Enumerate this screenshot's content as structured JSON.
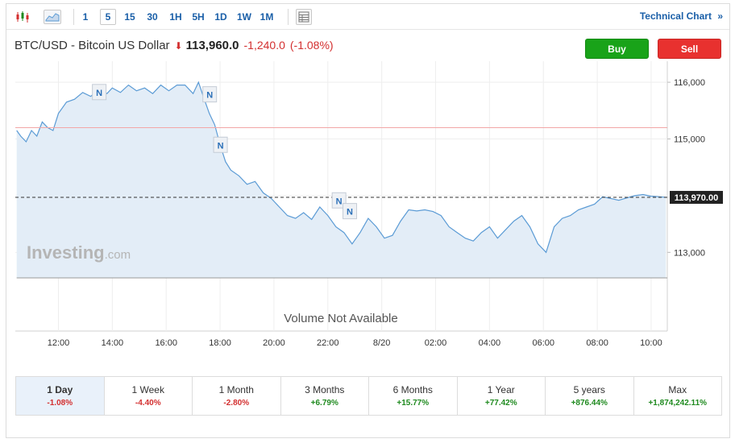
{
  "toolbar": {
    "chart_type_icons": [
      "candlestick-icon",
      "area-chart-icon"
    ],
    "timeframes": [
      "1",
      "5",
      "15",
      "30",
      "1H",
      "5H",
      "1D",
      "1W",
      "1M"
    ],
    "active_timeframe": "5",
    "table_icon": "table-icon",
    "technical_chart_label": "Technical Chart",
    "technical_chart_arrow": "»"
  },
  "instrument": {
    "name": "BTC/USD - Bitcoin US Dollar",
    "direction_icon": "down-arrow-icon",
    "price": "113,960.0",
    "change": "-1,240.0",
    "change_pct": "(-1.08%)"
  },
  "actions": {
    "buy_label": "Buy",
    "sell_label": "Sell"
  },
  "colors": {
    "buy": "#19a319",
    "sell": "#e8312f",
    "line": "#5b9bd5",
    "fill": "#e3edf7",
    "negative": "#d32f2f",
    "positive": "#1f8a1f"
  },
  "chart": {
    "watermark": "Investing",
    "watermark_suffix": ".com",
    "volume_text": "Volume Not Available",
    "news_marker_label": "N",
    "current_price_label": "113,970.00",
    "y_tick_labels": [
      "116,000",
      "115,000",
      "113,000"
    ],
    "x_tick_labels": [
      "12:00",
      "14:00",
      "16:00",
      "18:00",
      "20:00",
      "22:00",
      "8/20",
      "02:00",
      "04:00",
      "06:00",
      "08:00",
      "10:00"
    ]
  },
  "chart_data": {
    "type": "area",
    "ylim": [
      112550,
      116300
    ],
    "y_ticks": [
      116000,
      115000,
      114000,
      113000
    ],
    "x_range": [
      10.4,
      34.6
    ],
    "x_ticks": [
      12,
      14,
      16,
      18,
      20,
      22,
      24,
      26,
      28,
      30,
      32,
      34
    ],
    "previous_close": 115200,
    "current_price": 113970,
    "news_markers": [
      [
        13.5,
        115820
      ],
      [
        17.6,
        115780
      ],
      [
        18.0,
        114890
      ],
      [
        22.4,
        113910
      ],
      [
        22.8,
        113720
      ]
    ],
    "series": [
      {
        "x": [
          10.45,
          10.6,
          10.8,
          11.0,
          11.2,
          11.4,
          11.6,
          11.8,
          12.0,
          12.3,
          12.6,
          12.9,
          13.2,
          13.5,
          13.8,
          14.0,
          14.3,
          14.6,
          14.9,
          15.2,
          15.5,
          15.8,
          16.1,
          16.4,
          16.7,
          17.0,
          17.2,
          17.4,
          17.6,
          17.8,
          18.0,
          18.2,
          18.4,
          18.7,
          19.0,
          19.3,
          19.6,
          19.9,
          20.2,
          20.5,
          20.8,
          21.1,
          21.4,
          21.7,
          22.0,
          22.3,
          22.6,
          22.9,
          23.2,
          23.5,
          23.8,
          24.1,
          24.4,
          24.7,
          25.0,
          25.3,
          25.6,
          25.9,
          26.2,
          26.5,
          26.8,
          27.1,
          27.4,
          27.7,
          28.0,
          28.3,
          28.6,
          28.9,
          29.2,
          29.5,
          29.8,
          30.1,
          30.4,
          30.7,
          31.0,
          31.3,
          31.6,
          31.9,
          32.2,
          32.5,
          32.8,
          33.1,
          33.4,
          33.7,
          34.0,
          34.3,
          34.55
        ],
        "y": [
          115150,
          115050,
          114950,
          115150,
          115050,
          115300,
          115200,
          115150,
          115450,
          115650,
          115700,
          115820,
          115750,
          115880,
          115800,
          115900,
          115820,
          115950,
          115850,
          115900,
          115800,
          115950,
          115850,
          115950,
          115950,
          115800,
          116000,
          115720,
          115450,
          115250,
          114900,
          114600,
          114450,
          114350,
          114200,
          114250,
          114050,
          113950,
          113800,
          113650,
          113600,
          113700,
          113580,
          113800,
          113650,
          113450,
          113350,
          113150,
          113350,
          113600,
          113450,
          113250,
          113300,
          113550,
          113750,
          113730,
          113750,
          113720,
          113650,
          113450,
          113350,
          113250,
          113200,
          113350,
          113450,
          113250,
          113400,
          113550,
          113650,
          113450,
          113150,
          113000,
          113450,
          113600,
          113650,
          113750,
          113800,
          113850,
          113980,
          113950,
          113920,
          113960,
          114000,
          114020,
          113990,
          113980,
          113970
        ],
        "color": "#5b9bd5"
      }
    ]
  },
  "periods": [
    {
      "label": "1 Day",
      "change": "-1.08%",
      "positive": false,
      "active": true
    },
    {
      "label": "1 Week",
      "change": "-4.40%",
      "positive": false,
      "active": false
    },
    {
      "label": "1 Month",
      "change": "-2.80%",
      "positive": false,
      "active": false
    },
    {
      "label": "3 Months",
      "change": "+6.79%",
      "positive": true,
      "active": false
    },
    {
      "label": "6 Months",
      "change": "+15.77%",
      "positive": true,
      "active": false
    },
    {
      "label": "1 Year",
      "change": "+77.42%",
      "positive": true,
      "active": false
    },
    {
      "label": "5 years",
      "change": "+876.44%",
      "positive": true,
      "active": false
    },
    {
      "label": "Max",
      "change": "+1,874,242.11%",
      "positive": true,
      "active": false
    }
  ]
}
